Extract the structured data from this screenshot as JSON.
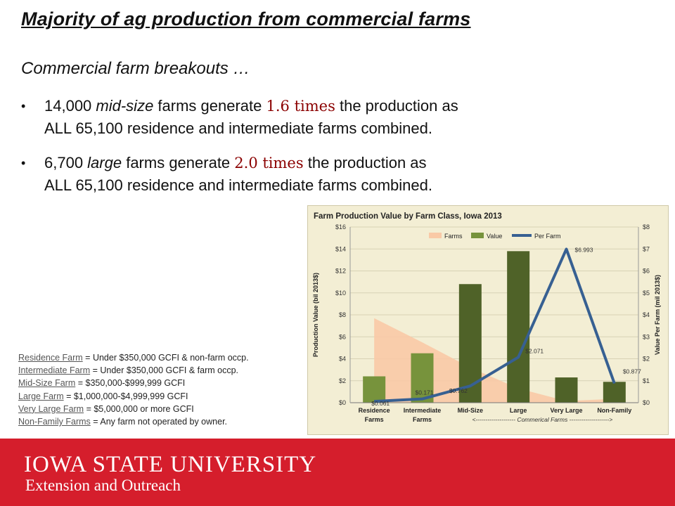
{
  "slide": {
    "title": "Majority of ag production from commercial farms",
    "subtitle": "Commercial farm breakouts …",
    "bullets": [
      {
        "b1": "14,000 ",
        "b2": "mid-size",
        "b3": " farms generate ",
        "b4": "1.6 times",
        "b5": " the production as",
        "line2": "ALL 65,100 residence and intermediate farms combined."
      },
      {
        "b1": "6,700 ",
        "b2": "large",
        "b3": " farms generate ",
        "b4": "2.0 times",
        "b5": " the production as",
        "line2": "ALL 65,100 residence and intermediate farms combined."
      }
    ],
    "definitions": [
      {
        "label": "Residence Farm",
        "text": " = Under $350,000 GCFI & non-farm occp."
      },
      {
        "label": "Intermediate Farm",
        "text": " = Under $350,000 GCFI & farm occp."
      },
      {
        "label": "Mid-Size Farm",
        "text": " = $350,000-$999,999 GCFI"
      },
      {
        "label": "Large Farm",
        "text": " = $1,000,000-$4,999,999 GCFI"
      },
      {
        "label": "Very Large Farm",
        "text": " = $5,000,000 or more GCFI"
      },
      {
        "label": "Non-Family Farms",
        "text": " = Any farm not operated by owner."
      }
    ]
  },
  "footer": {
    "line1": "IOWA STATE UNIVERSITY",
    "line2": "Extension and Outreach"
  },
  "colors": {
    "footer_red": "#d51e2c",
    "farms_area": "#f9c9a6",
    "value_bar_light": "#77933c",
    "value_bar_dark": "#4f6228",
    "per_farm_line": "#376092",
    "chart_bg": "#f3eed4"
  },
  "chart_data": {
    "type": "bar",
    "title": "Farm Production Value by Farm Class, Iowa 2013",
    "categories": [
      "Residence Farms",
      "Intermediate Farms",
      "Mid-Size",
      "Large",
      "Very Large",
      "Non-Family"
    ],
    "category_lines": [
      [
        "Residence",
        "Farms"
      ],
      [
        "Intermediate",
        "Farms"
      ],
      [
        "Mid-Size"
      ],
      [
        "Large"
      ],
      [
        "Very Large"
      ],
      [
        "Non-Family"
      ]
    ],
    "series": [
      {
        "name": "Farms",
        "type": "area",
        "values": [
          7.7,
          5.5,
          3.2,
          1.3,
          0.15,
          0.35
        ]
      },
      {
        "name": "Value",
        "type": "bar",
        "values": [
          2.4,
          4.5,
          10.8,
          13.8,
          2.3,
          1.9
        ]
      },
      {
        "name": "Per Farm",
        "type": "line",
        "axis": "right",
        "values": [
          0.061,
          0.171,
          0.762,
          2.071,
          6.993,
          0.877
        ],
        "labels": [
          "$0.061",
          "$0.171",
          "$0.762",
          "$2.071",
          "$6.993",
          "$0.877"
        ]
      }
    ],
    "ylabel": "Production Value (bil 2013$)",
    "y2label": "Value Per Farm (mil 2013$)",
    "ylim": [
      0,
      16
    ],
    "y2lim": [
      0,
      8
    ],
    "yticks": [
      "$0",
      "$2",
      "$4",
      "$6",
      "$8",
      "$10",
      "$12",
      "$14",
      "$16"
    ],
    "y2ticks": [
      "$0",
      "$1",
      "$2",
      "$3",
      "$4",
      "$5",
      "$6",
      "$7",
      "$8"
    ],
    "bracket_label": "<-------------------- Commerical Farms -------------------->",
    "legend_position": "top"
  }
}
